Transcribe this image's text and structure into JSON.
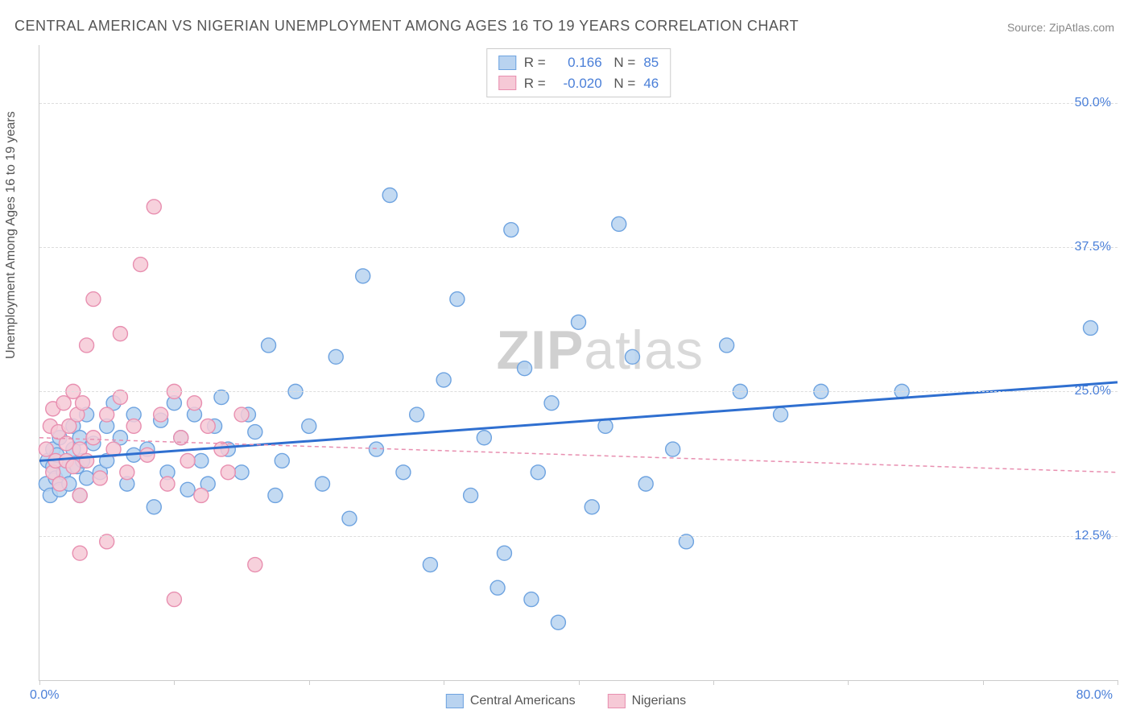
{
  "title": "CENTRAL AMERICAN VS NIGERIAN UNEMPLOYMENT AMONG AGES 16 TO 19 YEARS CORRELATION CHART",
  "source": "Source: ZipAtlas.com",
  "ylabel": "Unemployment Among Ages 16 to 19 years",
  "watermark_bold": "ZIP",
  "watermark_rest": "atlas",
  "chart": {
    "type": "scatter",
    "xlim": [
      0,
      80
    ],
    "ylim": [
      0,
      55
    ],
    "xtick_positions": [
      0,
      10,
      20,
      30,
      40,
      50,
      60,
      70,
      80
    ],
    "ytick_positions": [
      12.5,
      25.0,
      37.5,
      50.0
    ],
    "ytick_labels": [
      "12.5%",
      "25.0%",
      "37.5%",
      "50.0%"
    ],
    "xlabel_min": "0.0%",
    "xlabel_max": "80.0%",
    "background_color": "#ffffff",
    "grid_color": "#dddddd",
    "marker_radius": 9,
    "marker_stroke_width": 1.4,
    "series": [
      {
        "name": "Central Americans",
        "fill": "#b9d3f0",
        "stroke": "#6ea3e0",
        "line_color": "#2f6fd0",
        "line_dash": "none",
        "line_width": 3,
        "R": "0.166",
        "N": "85",
        "trend": {
          "x1": 0,
          "y1": 19.0,
          "x2": 80,
          "y2": 25.8
        },
        "points": [
          [
            0.5,
            17
          ],
          [
            0.6,
            19
          ],
          [
            0.8,
            16
          ],
          [
            1.0,
            18.5
          ],
          [
            1.0,
            20
          ],
          [
            1.2,
            17.5
          ],
          [
            1.3,
            19.5
          ],
          [
            1.5,
            21
          ],
          [
            1.5,
            16.5
          ],
          [
            1.8,
            18
          ],
          [
            2.0,
            19
          ],
          [
            2.2,
            17
          ],
          [
            2.5,
            20
          ],
          [
            2.5,
            22
          ],
          [
            2.8,
            18.5
          ],
          [
            3.0,
            21
          ],
          [
            3.0,
            16
          ],
          [
            3.2,
            19
          ],
          [
            3.5,
            23
          ],
          [
            3.5,
            17.5
          ],
          [
            4.0,
            20.5
          ],
          [
            4.5,
            18
          ],
          [
            5.0,
            22
          ],
          [
            5.0,
            19
          ],
          [
            5.5,
            24
          ],
          [
            6.0,
            21
          ],
          [
            6.5,
            17
          ],
          [
            7.0,
            23
          ],
          [
            7.0,
            19.5
          ],
          [
            8.0,
            20
          ],
          [
            8.5,
            15
          ],
          [
            9.0,
            22.5
          ],
          [
            9.5,
            18
          ],
          [
            10.0,
            24
          ],
          [
            10.5,
            21
          ],
          [
            11.0,
            16.5
          ],
          [
            11.5,
            23
          ],
          [
            12.0,
            19
          ],
          [
            12.5,
            17
          ],
          [
            13.0,
            22
          ],
          [
            13.5,
            24.5
          ],
          [
            14.0,
            20
          ],
          [
            15.0,
            18
          ],
          [
            15.5,
            23
          ],
          [
            16.0,
            21.5
          ],
          [
            17.0,
            29
          ],
          [
            17.5,
            16
          ],
          [
            18.0,
            19
          ],
          [
            19.0,
            25
          ],
          [
            20.0,
            22
          ],
          [
            21.0,
            17
          ],
          [
            22.0,
            28
          ],
          [
            23.0,
            14
          ],
          [
            24.0,
            35
          ],
          [
            25.0,
            20
          ],
          [
            26.0,
            42
          ],
          [
            27.0,
            18
          ],
          [
            28.0,
            23
          ],
          [
            29.0,
            10
          ],
          [
            30.0,
            26
          ],
          [
            31.0,
            33
          ],
          [
            32.0,
            16
          ],
          [
            33.0,
            21
          ],
          [
            34.0,
            8
          ],
          [
            35.0,
            39
          ],
          [
            36.0,
            27
          ],
          [
            36.5,
            7
          ],
          [
            37.0,
            18
          ],
          [
            38.0,
            24
          ],
          [
            38.5,
            5
          ],
          [
            40.0,
            31
          ],
          [
            41.0,
            15
          ],
          [
            42.0,
            22
          ],
          [
            43.0,
            39.5
          ],
          [
            44.0,
            28
          ],
          [
            45.0,
            17
          ],
          [
            47.0,
            20
          ],
          [
            48.0,
            12
          ],
          [
            51.0,
            29
          ],
          [
            52.0,
            25
          ],
          [
            55.0,
            23
          ],
          [
            58.0,
            25
          ],
          [
            64.0,
            25
          ],
          [
            78.0,
            30.5
          ],
          [
            34.5,
            11
          ]
        ]
      },
      {
        "name": "Nigerians",
        "fill": "#f6c9d6",
        "stroke": "#e88fb0",
        "line_color": "#e88fb0",
        "line_dash": "5,4",
        "line_width": 1.5,
        "R": "-0.020",
        "N": "46",
        "trend": {
          "x1": 0,
          "y1": 21.0,
          "x2": 80,
          "y2": 18.0
        },
        "points": [
          [
            0.5,
            20
          ],
          [
            0.8,
            22
          ],
          [
            1.0,
            18
          ],
          [
            1.0,
            23.5
          ],
          [
            1.2,
            19
          ],
          [
            1.4,
            21.5
          ],
          [
            1.5,
            17
          ],
          [
            1.8,
            24
          ],
          [
            2.0,
            20.5
          ],
          [
            2.0,
            19
          ],
          [
            2.2,
            22
          ],
          [
            2.5,
            25
          ],
          [
            2.5,
            18.5
          ],
          [
            2.8,
            23
          ],
          [
            3.0,
            20
          ],
          [
            3.0,
            16
          ],
          [
            3.2,
            24
          ],
          [
            3.5,
            19
          ],
          [
            3.5,
            29
          ],
          [
            4.0,
            21
          ],
          [
            4.0,
            33
          ],
          [
            4.5,
            17.5
          ],
          [
            5.0,
            23
          ],
          [
            5.0,
            12
          ],
          [
            5.5,
            20
          ],
          [
            6.0,
            24.5
          ],
          [
            6.0,
            30
          ],
          [
            6.5,
            18
          ],
          [
            7.0,
            22
          ],
          [
            7.5,
            36
          ],
          [
            8.0,
            19.5
          ],
          [
            8.5,
            41
          ],
          [
            9.0,
            23
          ],
          [
            9.5,
            17
          ],
          [
            10.0,
            25
          ],
          [
            10.5,
            21
          ],
          [
            11.0,
            19
          ],
          [
            11.5,
            24
          ],
          [
            12.0,
            16
          ],
          [
            12.5,
            22
          ],
          [
            13.5,
            20
          ],
          [
            14.0,
            18
          ],
          [
            15.0,
            23
          ],
          [
            16.0,
            10
          ],
          [
            10.0,
            7
          ],
          [
            3.0,
            11
          ]
        ]
      }
    ]
  },
  "legend_bottom": [
    {
      "label": "Central Americans",
      "fill": "#b9d3f0",
      "stroke": "#6ea3e0"
    },
    {
      "label": "Nigerians",
      "fill": "#f6c9d6",
      "stroke": "#e88fb0"
    }
  ]
}
